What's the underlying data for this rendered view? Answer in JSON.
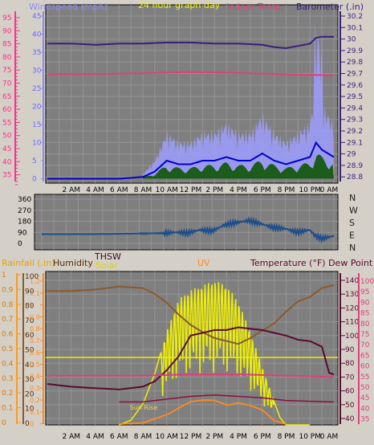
{
  "top_panel": {
    "title_left": "Windspeed (mph)",
    "title_center": "24 hour graph day",
    "title_center2": "Indoor Temp.",
    "title_right": "Barometer (.in)",
    "left_ticks": [
      "95",
      "90",
      "85",
      "80",
      "75",
      "70",
      "65",
      "60",
      "55",
      "50",
      "45",
      "40",
      "35"
    ],
    "mid_ticks": [
      "45",
      "40",
      "35",
      "30",
      "25",
      "20",
      "15",
      "10",
      "5",
      "0"
    ],
    "right_ticks": [
      "30.2",
      "30.1",
      "30",
      "29.9",
      "29.8",
      "29.7",
      "29.6",
      "29.5",
      "29.4",
      "29.3",
      "29.2",
      "29.1",
      "29",
      "28.9",
      "28.8"
    ],
    "colors": {
      "barometer": "#3a1e7a",
      "indoor": "#e0407a",
      "wind_gust": "#9e9eff",
      "wind_avg": "#0000cc",
      "wind_fill": "#1c5c1c"
    }
  },
  "middle_panel": {
    "left_ticks": [
      "360",
      "270",
      "180",
      "90",
      "0"
    ],
    "right_labels": [
      "N",
      "W",
      "S",
      "E",
      "N"
    ],
    "colors": {
      "direction": "#1e4e8a"
    }
  },
  "bottom_panel": {
    "labels": {
      "rainfall": "Rainfall (.in)",
      "humidity": "Humidity",
      "thsw": "THSW",
      "solar": "Solar",
      "uv": "UV",
      "temp": "Temperature (°F) Dew Point (°F)"
    },
    "rain_ticks": [
      "1",
      "0.9",
      "0.8",
      "0.7",
      "0.6",
      "0.5",
      "0.4",
      "0.3",
      "0.2",
      "0.1",
      "0"
    ],
    "humidity_ticks": [
      "100",
      "90",
      "80",
      "70",
      "60",
      "50",
      "40",
      "30",
      "20",
      "10",
      "0"
    ],
    "uv_ticks": [
      "1.2",
      "1.1",
      "1",
      "0.9",
      "0.8",
      "0.7",
      "0.6",
      "0.5",
      "0.4",
      "0.3",
      "0.2",
      "0.1",
      "0"
    ],
    "temp_ticks": [
      "140",
      "130",
      "120",
      "110",
      "100",
      "90",
      "80",
      "70",
      "60",
      "50",
      "40"
    ],
    "dew_ticks": [
      "100",
      "95",
      "90",
      "85",
      "80",
      "75",
      "70",
      "65",
      "60",
      "55",
      "50",
      "45",
      "40",
      "35"
    ],
    "sunrise_label": "Sun Rise",
    "colors": {
      "humidity": "#8b5a2b",
      "temp": "#5a0a2e",
      "dew": "#e0407a",
      "solar": "#f0f000",
      "uv": "#ff8a1c",
      "thsw": "#8b1040",
      "rain": "#e8d84a"
    }
  },
  "chart_data": [
    {
      "type": "line",
      "title": "24 hour graph day",
      "x_ticks": [
        "2 AM",
        "4 AM",
        "6 AM",
        "8 AM",
        "10 AM",
        "12 PM",
        "2 PM",
        "4 PM",
        "6 PM",
        "8 PM",
        "10 PM",
        "0 AM"
      ],
      "series": [
        {
          "name": "Barometer (.in)",
          "x": [
            0,
            2,
            4,
            6,
            8,
            10,
            12,
            14,
            16,
            18,
            19,
            20,
            21,
            22,
            22.5,
            23,
            24
          ],
          "values": [
            29.96,
            29.96,
            29.95,
            29.96,
            29.96,
            29.97,
            29.97,
            29.96,
            29.96,
            29.95,
            29.93,
            29.92,
            29.94,
            29.96,
            30.01,
            30.02,
            30.02
          ]
        },
        {
          "name": "Indoor Temp.",
          "x": [
            0,
            4,
            8,
            12,
            16,
            20,
            24
          ],
          "values": [
            73.5,
            73.5,
            73.8,
            74.2,
            73.9,
            73.4,
            73.0
          ]
        },
        {
          "name": "Windspeed (mph)",
          "x": [
            0,
            2,
            4,
            6,
            8,
            9,
            10,
            11,
            12,
            13,
            14,
            15,
            16,
            17,
            18,
            19,
            20,
            21,
            22,
            22.5,
            23,
            24
          ],
          "values": [
            0,
            0,
            0,
            0,
            0.5,
            2,
            5,
            4,
            4,
            5,
            5,
            6,
            5,
            5,
            7,
            5,
            4,
            5,
            6,
            10,
            8,
            6
          ]
        }
      ]
    },
    {
      "type": "line",
      "x_ticks": [
        "2 AM",
        "4 AM",
        "6 AM",
        "8 AM",
        "10 AM",
        "12 PM",
        "2 PM",
        "4 PM",
        "6 PM",
        "8 PM",
        "10 PM",
        "0 AM"
      ],
      "ylim": [
        0,
        360
      ],
      "series": [
        {
          "x": [
            0,
            2,
            4,
            6,
            8,
            9,
            10,
            11,
            12,
            13,
            14,
            15,
            16,
            17,
            18,
            19,
            20,
            21,
            22,
            22.5,
            23,
            24
          ],
          "values": [
            75,
            75,
            75,
            78,
            80,
            82,
            84,
            90,
            85,
            110,
            100,
            150,
            170,
            185,
            160,
            130,
            120,
            90,
            110,
            60,
            40,
            60
          ]
        }
      ]
    },
    {
      "type": "line",
      "x_ticks": [
        "2 AM",
        "4 AM",
        "6 AM",
        "8 AM",
        "10 AM",
        "12 PM",
        "2 PM",
        "4 PM",
        "6 PM",
        "8 PM",
        "10 PM",
        "0 AM"
      ],
      "series": [
        {
          "name": "Humidity",
          "x": [
            0,
            2,
            4,
            6,
            8,
            9,
            10,
            11,
            12,
            13,
            14,
            15,
            16,
            17,
            18,
            19,
            20,
            21,
            22,
            23,
            24
          ],
          "values": [
            90,
            90,
            91,
            93,
            92,
            88,
            82,
            74,
            67,
            62,
            58,
            56,
            54,
            58,
            63,
            68,
            76,
            83,
            86,
            92,
            94
          ]
        },
        {
          "name": "Temperature (°F)",
          "x": [
            0,
            2,
            4,
            6,
            8,
            9,
            10,
            11,
            12,
            13,
            14,
            15,
            16,
            17,
            18,
            19,
            20,
            21,
            22,
            23,
            23.6,
            24
          ],
          "values": [
            65,
            63,
            62,
            61,
            63,
            67,
            75,
            85,
            100,
            102,
            104,
            104,
            106,
            105,
            104,
            102,
            100,
            97,
            96,
            92,
            73,
            72
          ]
        },
        {
          "name": "Dew Point (°F)",
          "x": [
            0,
            4,
            8,
            12,
            16,
            20,
            24
          ],
          "values": [
            71,
            71,
            71,
            72,
            72,
            71,
            70
          ]
        },
        {
          "name": "Solar",
          "x": [
            6,
            7,
            8,
            9,
            10,
            11,
            12,
            13,
            14,
            15,
            16,
            17,
            18,
            19,
            19.5,
            20,
            22,
            24
          ],
          "values": [
            0,
            0.2,
            0.9,
            2.2,
            4.0,
            5.4,
            5.8,
            6.0,
            6.2,
            6.0,
            5.3,
            4.0,
            2.5,
            1.0,
            0.3,
            0,
            0,
            0
          ]
        },
        {
          "name": "UV",
          "x": [
            6,
            8,
            10,
            12,
            14,
            16,
            18,
            19,
            20
          ],
          "values": [
            0,
            0.01,
            0.08,
            0.19,
            0.24,
            0.22,
            0.12,
            0.03,
            0
          ]
        },
        {
          "name": "THSW",
          "x": [
            6,
            8,
            10,
            12,
            14,
            16,
            18,
            20,
            24
          ],
          "values": [
            52,
            52,
            54,
            56,
            57,
            56,
            55,
            53,
            52
          ]
        }
      ]
    }
  ]
}
